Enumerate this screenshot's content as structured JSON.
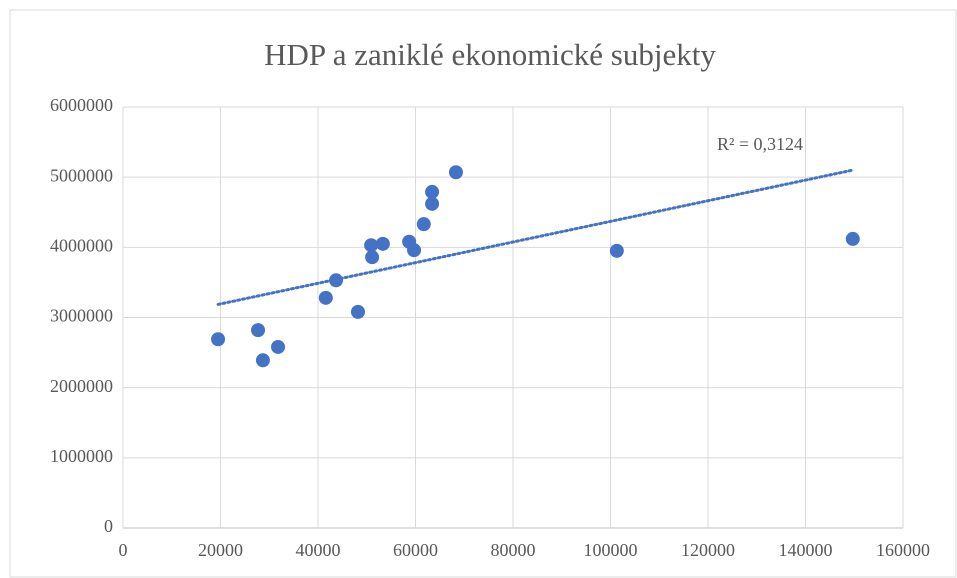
{
  "chart_data": {
    "type": "scatter",
    "title": "HDP a zaniklé ekonomické subjekty",
    "annotation": "R² = 0,3124",
    "trendline": "linear",
    "color": "#4472c4",
    "x": [
      19500,
      27700,
      28700,
      31800,
      41600,
      43700,
      48200,
      50900,
      51100,
      53300,
      58700,
      59700,
      61700,
      63400,
      63400,
      68300,
      101300,
      149700
    ],
    "values": [
      2690000,
      2820000,
      2390000,
      2580000,
      3280000,
      3530000,
      3080000,
      4030000,
      3860000,
      4050000,
      4080000,
      3960000,
      4330000,
      4790000,
      4620000,
      5070000,
      3950000,
      4120000
    ],
    "xlim": [
      0,
      160000
    ],
    "xticks": [
      0,
      20000,
      40000,
      60000,
      80000,
      100000,
      120000,
      140000,
      160000
    ],
    "ylim": [
      0,
      6000000
    ],
    "yticks": [
      0,
      1000000,
      2000000,
      3000000,
      4000000,
      5000000,
      6000000
    ],
    "grid": true
  }
}
